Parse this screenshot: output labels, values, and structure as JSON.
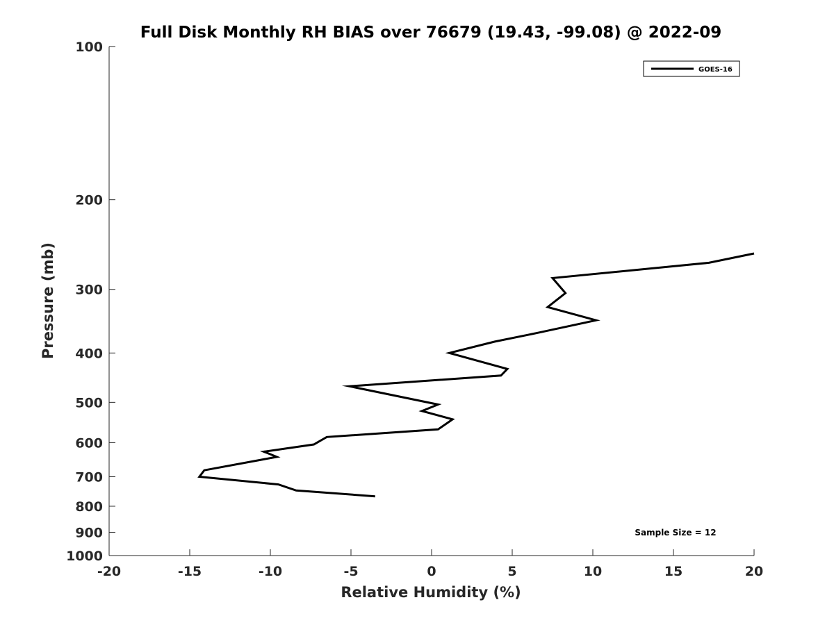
{
  "chart_data": {
    "type": "line",
    "title": "Full Disk Monthly RH BIAS over 76679 (19.43, -99.08) @ 2022-09",
    "xlabel": "Relative Humidity (%)",
    "ylabel": "Pressure (mb)",
    "xlim": [
      -20,
      20
    ],
    "ylim": [
      100,
      1000
    ],
    "y_scale": "log",
    "y_reversed": true,
    "x_ticks": [
      "-20",
      "-15",
      "-10",
      "-5",
      "0",
      "5",
      "10",
      "15",
      "20"
    ],
    "y_ticks": [
      "100",
      "200",
      "300",
      "400",
      "500",
      "600",
      "700",
      "800",
      "900",
      "1000"
    ],
    "grid": false,
    "legend_position": "top-right",
    "series": [
      {
        "name": "GOES-16",
        "color": "#000000",
        "x": [
          -3.5,
          -8.4,
          -9.5,
          -14.4,
          -14.1,
          -9.6,
          -10.4,
          -7.3,
          -6.5,
          0.4,
          1.3,
          -0.6,
          0.4,
          -5.1,
          4.3,
          4.7,
          1.1,
          3.9,
          6.6,
          10.2,
          7.2,
          8.3,
          7.5,
          17.2,
          20.0
        ],
        "y": [
          765,
          745,
          725,
          700,
          680,
          640,
          625,
          605,
          585,
          565,
          540,
          520,
          505,
          465,
          443,
          430,
          400,
          380,
          365,
          345,
          325,
          305,
          285,
          266,
          255
        ]
      }
    ],
    "annotations": {
      "sample_size": "Sample Size = 12"
    }
  }
}
